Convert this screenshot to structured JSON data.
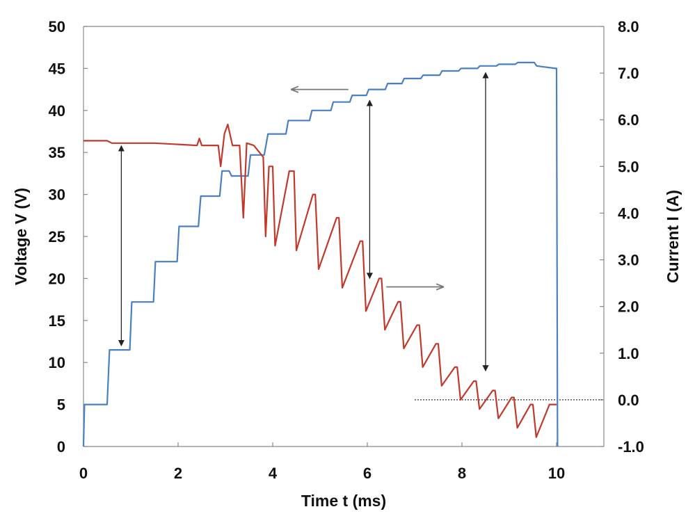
{
  "chart_data": {
    "type": "line",
    "xlabel": "Time t (ms)",
    "ylabel_left": "Voltage V (V)",
    "ylabel_right": "Current I (A)",
    "xlim": [
      0,
      11
    ],
    "ylim_left": [
      0,
      50
    ],
    "ylim_right": [
      -1.0,
      8.0
    ],
    "x_ticks": [
      "0",
      "2",
      "4",
      "6",
      "8",
      "10"
    ],
    "y_left_ticks": [
      "0",
      "5",
      "10",
      "15",
      "20",
      "25",
      "30",
      "35",
      "40",
      "45",
      "50"
    ],
    "y_right_ticks": [
      "-1.0",
      "0.0",
      "1.0",
      "2.0",
      "3.0",
      "4.0",
      "5.0",
      "6.0",
      "7.0",
      "8.0"
    ],
    "grid": false,
    "legend": "none",
    "series": [
      {
        "axis": "left",
        "color": "#4a7fc1",
        "x": [
          0,
          0.02,
          0.05,
          0.5,
          0.55,
          0.98,
          1.02,
          1.48,
          1.52,
          1.98,
          2.02,
          2.43,
          2.48,
          2.88,
          2.93,
          3.08,
          3.13,
          3.48,
          3.53,
          3.82,
          3.9,
          4.28,
          4.33,
          4.78,
          4.83,
          5.23,
          5.28,
          5.63,
          5.68,
          5.98,
          6.03,
          6.38,
          6.43,
          6.73,
          6.78,
          7.13,
          7.18,
          7.53,
          7.58,
          7.93,
          7.98,
          8.33,
          8.38,
          8.73,
          8.78,
          9.13,
          9.18,
          9.53,
          9.58,
          9.98,
          10.0,
          10.02
        ],
        "y": [
          0,
          5,
          5,
          5,
          11.5,
          11.5,
          17.2,
          17.2,
          22.0,
          22.0,
          26.2,
          26.2,
          29.8,
          29.8,
          32.8,
          32.8,
          32.2,
          32.2,
          34.7,
          34.7,
          37.2,
          37.2,
          38.8,
          38.8,
          40.0,
          40.0,
          41.0,
          41.0,
          41.8,
          41.8,
          42.5,
          42.5,
          43.2,
          43.2,
          43.8,
          43.8,
          44.2,
          44.2,
          44.7,
          44.7,
          45.0,
          45.0,
          45.3,
          45.3,
          45.5,
          45.5,
          45.7,
          45.7,
          45.3,
          45.0,
          45.0,
          0
        ]
      },
      {
        "axis": "right",
        "color": "#c0392b",
        "x": [
          0,
          0.5,
          0.6,
          1.5,
          2.4,
          2.45,
          2.5,
          2.85,
          2.9,
          2.98,
          3.05,
          3.15,
          3.3,
          3.38,
          3.45,
          3.6,
          3.8,
          3.85,
          3.92,
          4.0,
          4.05,
          4.35,
          4.45,
          4.5,
          4.85,
          4.9,
          4.97,
          5.35,
          5.4,
          5.47,
          5.85,
          5.9,
          5.97,
          6.25,
          6.3,
          6.37,
          6.65,
          6.7,
          6.77,
          7.05,
          7.1,
          7.17,
          7.45,
          7.5,
          7.57,
          7.85,
          7.9,
          7.97,
          8.25,
          8.3,
          8.37,
          8.65,
          8.7,
          8.77,
          9.05,
          9.1,
          9.17,
          9.45,
          9.5,
          9.57,
          9.85,
          9.9,
          10.0
        ],
        "y": [
          5.55,
          5.55,
          5.5,
          5.5,
          5.45,
          5.6,
          5.45,
          5.45,
          5.0,
          5.7,
          5.9,
          5.45,
          5.45,
          3.9,
          5.5,
          5.45,
          5.2,
          3.5,
          5.0,
          5.0,
          3.3,
          4.9,
          4.9,
          3.2,
          4.4,
          4.4,
          2.8,
          3.9,
          3.9,
          2.4,
          3.4,
          3.4,
          1.9,
          2.6,
          2.6,
          1.5,
          2.1,
          2.1,
          1.1,
          1.6,
          1.6,
          0.7,
          1.2,
          1.2,
          0.3,
          0.7,
          0.7,
          0.0,
          0.4,
          0.4,
          -0.2,
          0.2,
          0.2,
          -0.4,
          0.05,
          0.05,
          -0.6,
          -0.1,
          -0.1,
          -0.8,
          -0.1,
          -0.1,
          -0.1
        ]
      }
    ],
    "annotations": {
      "double_arrows": [
        {
          "x": 0.8,
          "y_top": 35.8,
          "y_bottom": 12.0
        },
        {
          "x": 6.05,
          "y_top": 41.2,
          "y_bottom": 20.0
        },
        {
          "x": 8.5,
          "y_top": 44.5,
          "y_bottom": 9.0
        }
      ],
      "direction_arrows": [
        {
          "x_from": 5.6,
          "x_to": 4.4,
          "y": 42.5
        },
        {
          "x_from": 6.4,
          "x_to": 7.6,
          "y": 19.0
        }
      ],
      "zero_reference": {
        "x_from": 7.0,
        "x_to": 11.0,
        "current": 0.0
      }
    }
  }
}
